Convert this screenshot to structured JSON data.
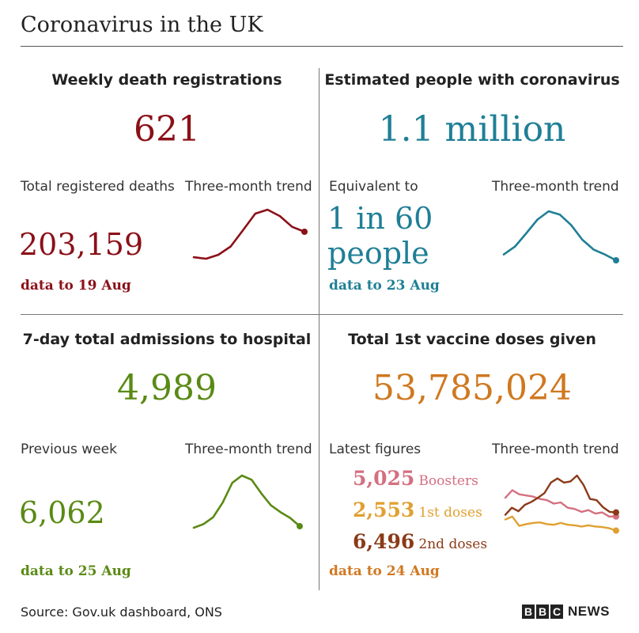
{
  "title": "Coronavirus in the UK",
  "colors": {
    "deaths": "#8b1018",
    "infections": "#1f7f96",
    "hospital": "#5a8a14",
    "vaccine": "#d07820",
    "boosters": "#d47080",
    "first_doses": "#e0a030",
    "second_doses": "#8b3a18"
  },
  "panels": {
    "deaths": {
      "heading": "Weekly death registrations",
      "headline": "621",
      "sub_label": "Total registered deaths",
      "trend_label": "Three-month trend",
      "value": "203,159",
      "date": "data to 19 Aug"
    },
    "infections": {
      "heading": "Estimated people with coronavirus",
      "headline": "1.1 million",
      "sub_label": "Equivalent to",
      "trend_label": "Three-month trend",
      "value_line1": "1 in 60",
      "value_line2": "people",
      "date": "data to 23 Aug"
    },
    "hospital": {
      "heading": "7-day total admissions to hospital",
      "headline": "4,989",
      "sub_label": "Previous week",
      "trend_label": "Three-month trend",
      "value": "6,062",
      "date": "data to 25 Aug"
    },
    "vaccine": {
      "heading": "Total 1st vaccine doses given",
      "headline": "53,785,024",
      "sub_label": "Latest figures",
      "trend_label": "Three-month trend",
      "latest": [
        {
          "value": "5,025",
          "label": "Boosters"
        },
        {
          "value": "2,553",
          "label": "1st doses"
        },
        {
          "value": "6,496",
          "label": "2nd doses"
        }
      ],
      "date": "data to 24 Aug"
    }
  },
  "chart_data": [
    {
      "type": "line",
      "name": "deaths-trend",
      "series": [
        {
          "values": [
            0.03,
            0.0,
            0.08,
            0.25,
            0.58,
            0.92,
            1.0,
            0.87,
            0.65,
            0.55
          ]
        }
      ]
    },
    {
      "type": "line",
      "name": "infections-trend",
      "series": [
        {
          "values": [
            0.12,
            0.28,
            0.55,
            0.83,
            1.0,
            0.93,
            0.72,
            0.42,
            0.22,
            0.12,
            0.0
          ]
        }
      ]
    },
    {
      "type": "line",
      "name": "hospital-trend",
      "series": [
        {
          "values": [
            0.0,
            0.07,
            0.2,
            0.48,
            0.86,
            1.0,
            0.92,
            0.66,
            0.43,
            0.3,
            0.19,
            0.03
          ]
        }
      ]
    },
    {
      "type": "line",
      "name": "vaccine-trend",
      "series": [
        {
          "values": [
            0.62,
            0.75,
            0.68,
            0.66,
            0.64,
            0.6,
            0.58,
            0.52,
            0.54,
            0.45,
            0.43,
            0.38,
            0.41,
            0.35,
            0.37,
            0.3,
            0.3
          ]
        },
        {
          "values": [
            0.25,
            0.3,
            0.14,
            0.17,
            0.19,
            0.2,
            0.17,
            0.16,
            0.19,
            0.16,
            0.15,
            0.13,
            0.15,
            0.13,
            0.12,
            0.1,
            0.06
          ]
        },
        {
          "values": [
            0.33,
            0.45,
            0.39,
            0.5,
            0.55,
            0.62,
            0.7,
            0.88,
            0.95,
            0.88,
            0.9,
            1.0,
            0.84,
            0.6,
            0.58,
            0.46,
            0.38,
            0.37
          ]
        }
      ]
    }
  ]
}
